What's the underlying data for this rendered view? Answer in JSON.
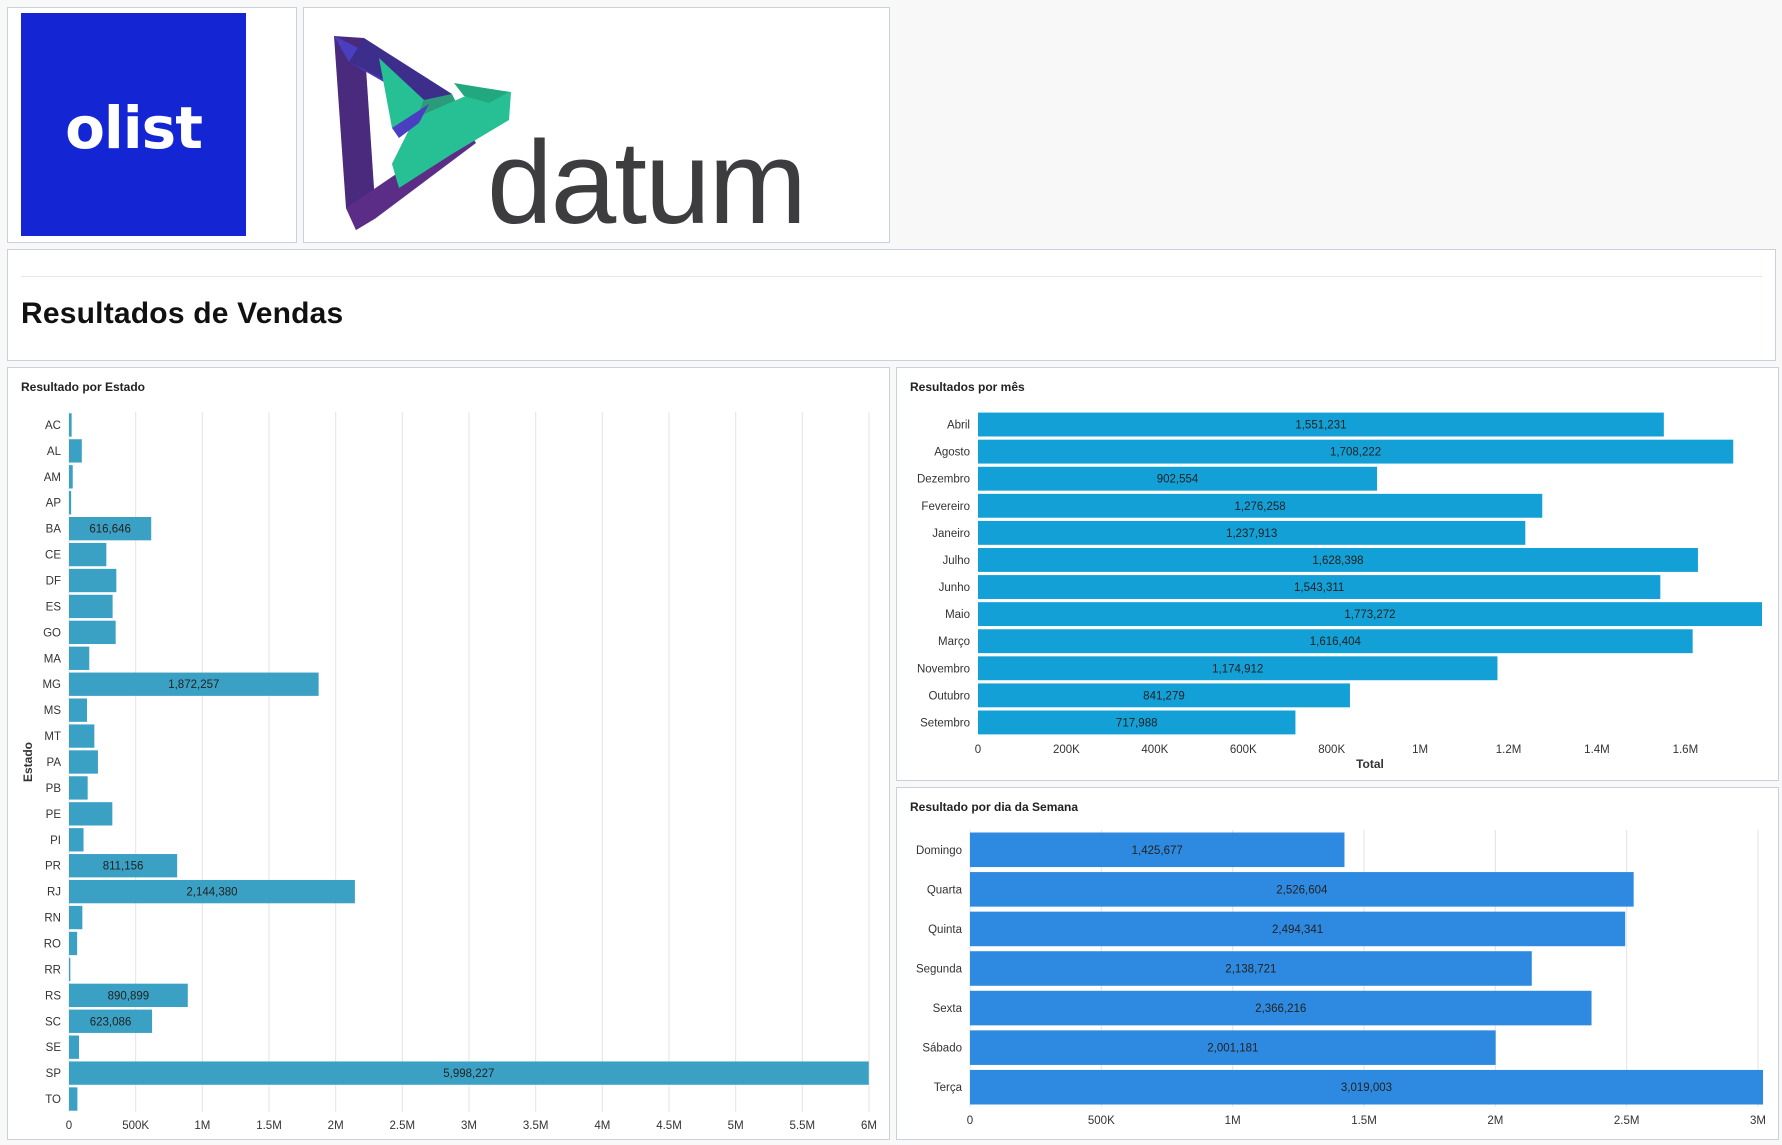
{
  "logos": {
    "olist": "olist",
    "datum": "datum",
    "olist_color": "#1426d4",
    "datum_text_color": "#3d3d40"
  },
  "header": {
    "title": "Resultados de Vendas"
  },
  "charts": {
    "estado": {
      "title": "Resultado por Estado",
      "ylabel": "Estado",
      "bar_color": "#3aa1c4",
      "xticks": [
        "0",
        "500K",
        "1M",
        "1.5M",
        "2M",
        "2.5M",
        "3M",
        "3.5M",
        "4M",
        "4.5M",
        "5M",
        "5.5M",
        "6M"
      ]
    },
    "mes": {
      "title": "Resultados por mês",
      "xlabel": "Total",
      "bar_color": "#12a0d7",
      "xticks": [
        "0",
        "200K",
        "400K",
        "600K",
        "800K",
        "1M",
        "1.2M",
        "1.4M",
        "1.6M"
      ]
    },
    "dia": {
      "title": "Resultado por dia da Semana",
      "bar_color": "#2e8ae0",
      "xticks": [
        "0",
        "500K",
        "1M",
        "1.5M",
        "2M",
        "2.5M",
        "3M"
      ]
    }
  },
  "chart_data": [
    {
      "type": "bar",
      "orientation": "horizontal",
      "title": "Resultado por Estado",
      "ylabel": "Estado",
      "xlim": [
        0,
        6000000
      ],
      "grid": true,
      "categories": [
        "AC",
        "AL",
        "AM",
        "AP",
        "BA",
        "CE",
        "DF",
        "ES",
        "GO",
        "MA",
        "MG",
        "MS",
        "MT",
        "PA",
        "PB",
        "PE",
        "PI",
        "PR",
        "RJ",
        "RN",
        "RO",
        "RR",
        "RS",
        "SC",
        "SE",
        "SP",
        "TO"
      ],
      "values": [
        19700,
        96000,
        28000,
        16000,
        616646,
        280000,
        355000,
        327000,
        350000,
        152000,
        1872257,
        135000,
        190000,
        217000,
        140000,
        325000,
        109000,
        811156,
        2144380,
        100000,
        61000,
        10000,
        890899,
        623086,
        75000,
        5998227,
        63000
      ],
      "labels": [
        "",
        "",
        "",
        "",
        "616,646",
        "",
        "",
        "",
        "",
        "",
        "1,872,257",
        "",
        "",
        "",
        "",
        "",
        "",
        "811,156",
        "2,144,380",
        "",
        "",
        "",
        "890,899",
        "623,086",
        "",
        "5,998,227",
        ""
      ]
    },
    {
      "type": "bar",
      "orientation": "horizontal",
      "title": "Resultados por mês",
      "xlabel": "Total",
      "xlim": [
        0,
        1773272
      ],
      "grid": false,
      "categories": [
        "Abril",
        "Agosto",
        "Dezembro",
        "Fevereiro",
        "Janeiro",
        "Julho",
        "Junho",
        "Maio",
        "Março",
        "Novembro",
        "Outubro",
        "Setembro"
      ],
      "values": [
        1551231,
        1708222,
        902554,
        1276258,
        1237913,
        1628398,
        1543311,
        1773272,
        1616404,
        1174912,
        841279,
        717988
      ],
      "labels": [
        "1,551,231",
        "1,708,222",
        "902,554",
        "1,276,258",
        "1,237,913",
        "1,628,398",
        "1,543,311",
        "1,773,272",
        "1,616,404",
        "1,174,912",
        "841,279",
        "717,988"
      ]
    },
    {
      "type": "bar",
      "orientation": "horizontal",
      "title": "Resultado por dia da Semana",
      "xlim": [
        0,
        3019003
      ],
      "grid": true,
      "categories": [
        "Domingo",
        "Quarta",
        "Quinta",
        "Segunda",
        "Sexta",
        "Sábado",
        "Terça"
      ],
      "values": [
        1425677,
        2526604,
        2494341,
        2138721,
        2366216,
        2001181,
        3019003
      ],
      "labels": [
        "1,425,677",
        "2,526,604",
        "2,494,341",
        "2,138,721",
        "2,366,216",
        "2,001,181",
        "3,019,003"
      ]
    }
  ]
}
